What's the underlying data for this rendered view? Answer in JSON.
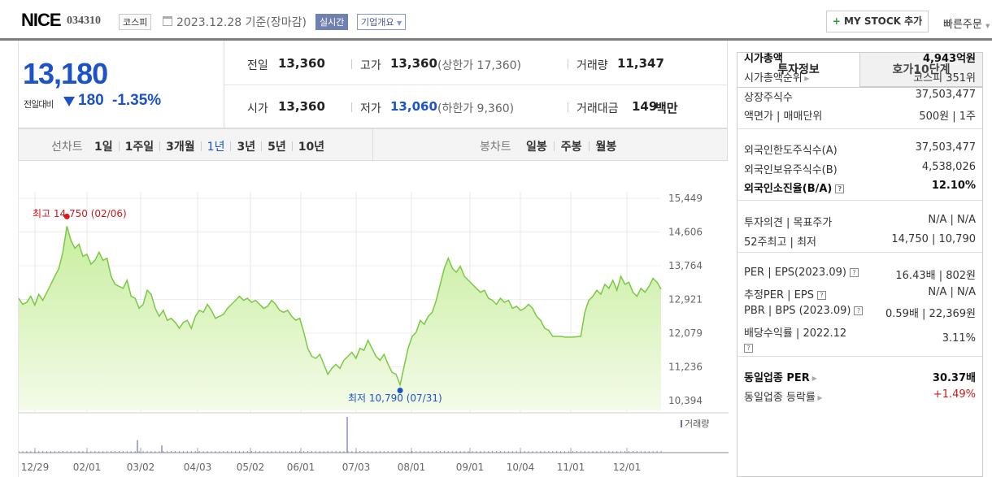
{
  "header": {
    "name": "NICE",
    "code": "034310",
    "market_badge": "코스피",
    "date": "2023.12.28 기준(장마감)",
    "realtime_badge": "실시간",
    "company_badge": "기업개요",
    "mystock_button": "MY STOCK 추가",
    "quick_order": "빠른주문"
  },
  "price": {
    "current": "13,180",
    "change_label": "전일대비",
    "change": "180",
    "change_pct": "-1.35%"
  },
  "stats": {
    "prev_label": "전일",
    "prev_value": "13,360",
    "high_label": "고가",
    "high_value": "13,360",
    "high_sub": "(상한가 17,360)",
    "volume_label": "거래량",
    "volume_value": "11,347",
    "open_label": "시가",
    "open_value": "13,360",
    "low_label": "저가",
    "low_value": "13,060",
    "low_sub": "(하한가 9,360)",
    "amount_label": "거래대금",
    "amount_value": "149",
    "amount_unit": "백만"
  },
  "period_bar": {
    "line_label": "선차트",
    "line_periods": [
      "1일",
      "1주일",
      "3개월",
      "1년",
      "3년",
      "5년",
      "10년"
    ],
    "selected": "1년",
    "candle_label": "봉차트",
    "candle_periods": [
      "일봉",
      "주봉",
      "월봉"
    ]
  },
  "chart_data": {
    "type": "area",
    "y_ticks": [
      "15,449",
      "14,606",
      "13,764",
      "12,921",
      "12,079",
      "11,236",
      "10,394"
    ],
    "ylim": [
      10394,
      15449
    ],
    "x_ticks": [
      "12/29",
      "02/01",
      "03/02",
      "04/03",
      "05/02",
      "06/01",
      "07/03",
      "08/01",
      "09/01",
      "10/04",
      "11/01",
      "12/01"
    ],
    "high_annotation": "최고 14,750 (02/06)",
    "low_annotation": "최저 10,790 (07/31)",
    "volume_legend": "거래량",
    "accent_color": "#7ac943",
    "series_values": [
      12950,
      12800,
      12850,
      13000,
      12780,
      13050,
      12900,
      13100,
      13300,
      13500,
      13700,
      14100,
      14750,
      14400,
      14200,
      14300,
      14000,
      14050,
      13800,
      13900,
      14100,
      13900,
      13950,
      13500,
      13300,
      13250,
      13200,
      13400,
      13000,
      12950,
      12700,
      12800,
      13150,
      13050,
      12700,
      12500,
      12650,
      12400,
      12450,
      12350,
      12200,
      12350,
      12400,
      12200,
      12500,
      12650,
      12600,
      12800,
      12650,
      12450,
      12500,
      12550,
      12700,
      12800,
      12900,
      13000,
      12900,
      12950,
      12850,
      12900,
      12800,
      12700,
      12750,
      12900,
      12800,
      12650,
      12600,
      12650,
      12500,
      12400,
      12450,
      12100,
      11700,
      11500,
      11450,
      11550,
      11300,
      11050,
      11200,
      11300,
      11200,
      11400,
      11500,
      11600,
      11450,
      11700,
      11650,
      11900,
      11700,
      11500,
      11400,
      11550,
      11300,
      11100,
      11050,
      10790,
      11250,
      11700,
      12000,
      12100,
      12400,
      12300,
      12500,
      12600,
      12900,
      13300,
      13700,
      13950,
      13700,
      13600,
      13750,
      13500,
      13400,
      13300,
      13200,
      13100,
      13150,
      12950,
      12900,
      12800,
      12950,
      12850,
      12900,
      12700,
      12750,
      12650,
      12700,
      12800,
      12700,
      12500,
      12400,
      12200,
      12150,
      12000,
      12000,
      12000,
      11980,
      11980,
      11980,
      11990,
      12000,
      12600,
      12900,
      13000,
      13150,
      13050,
      13300,
      13200,
      13400,
      13150,
      13500,
      13300,
      13350,
      13100,
      13000,
      13200,
      13100,
      13250,
      13450,
      13350,
      13180
    ],
    "volume_spikes": [
      {
        "date": "03/02",
        "level": 0.35
      },
      {
        "date": "03/02",
        "level": 0.2
      },
      {
        "date": "07/03",
        "level": 1.0
      }
    ]
  },
  "panel": {
    "tab_active": "투자정보",
    "tab_inactive": "호가10단계",
    "rows": [
      {
        "label": "시가총액",
        "value": "4,943억원",
        "bold": true
      },
      {
        "label": "시가총액순위",
        "value": "코스피 351위"
      },
      {
        "label": "상장주식수",
        "value": "37,503,477"
      },
      {
        "label": "액면가 | 매매단위",
        "value": "500원 | 1주"
      },
      {
        "label": "외국인한도주식수(A)",
        "value": "37,503,477"
      },
      {
        "label": "외국인보유주식수(B)",
        "value": "4,538,026"
      },
      {
        "label": "외국인소진율(B/A)",
        "value": "12.10%",
        "bold": true
      },
      {
        "label": "투자의견 | 목표주가",
        "value": "N/A | N/A"
      },
      {
        "label": "52주최고 | 최저",
        "value": "14,750 | 10,790"
      },
      {
        "label": "PER | EPS(2023.09)",
        "value": "16.43배 | 802원"
      },
      {
        "label": "추정PER | EPS",
        "value": "N/A | N/A"
      },
      {
        "label": "PBR | BPS (2023.09)",
        "value": "0.59배 | 22,369원"
      },
      {
        "label": "배당수익률 | 2022.12",
        "value": "3.11%"
      },
      {
        "label": "동일업종 PER",
        "value": "30.37배",
        "bold": true
      },
      {
        "label": "동일업종 등락률",
        "value": "+1.49%"
      }
    ]
  }
}
